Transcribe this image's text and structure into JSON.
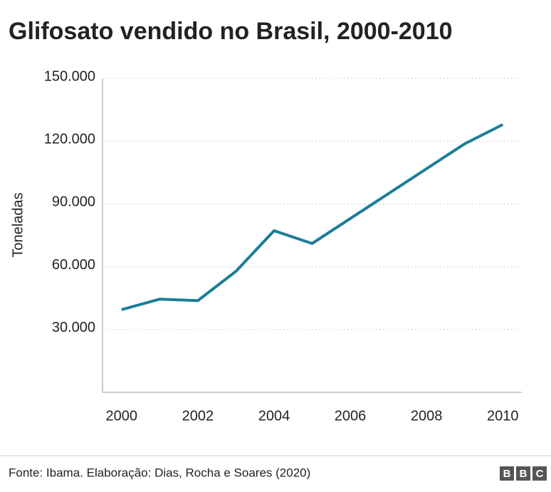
{
  "chart_data": {
    "type": "line",
    "title": "Glifosato vendido no Brasil, 2000-2010",
    "y_label": "Toneladas",
    "x": [
      2000,
      2001,
      2002,
      2003,
      2004,
      2005,
      2006,
      2007,
      2008,
      2009,
      2010
    ],
    "series": [
      {
        "name": "Glifosato",
        "color": "#1a7d99",
        "values": [
          39500,
          44500,
          43800,
          57800,
          77200,
          71100,
          83000,
          94900,
          106800,
          118700,
          127900
        ]
      }
    ],
    "xlim": [
      1999.5,
      2010.5
    ],
    "xticks": [
      2000,
      2002,
      2004,
      2006,
      2008,
      2010
    ],
    "ylim": [
      0,
      150000
    ],
    "yticks": [
      {
        "value": 30000,
        "label": "30.000"
      },
      {
        "value": 60000,
        "label": "60.000"
      },
      {
        "value": 90000,
        "label": "90.000"
      },
      {
        "value": 120000,
        "label": "120.000"
      },
      {
        "value": 150000,
        "label": "150.000"
      }
    ],
    "grid": true
  },
  "footer": {
    "source": "Fonte: Ibama. Elaboração: Dias, Rocha e Soares (2020)",
    "logo": [
      "B",
      "B",
      "C"
    ]
  }
}
